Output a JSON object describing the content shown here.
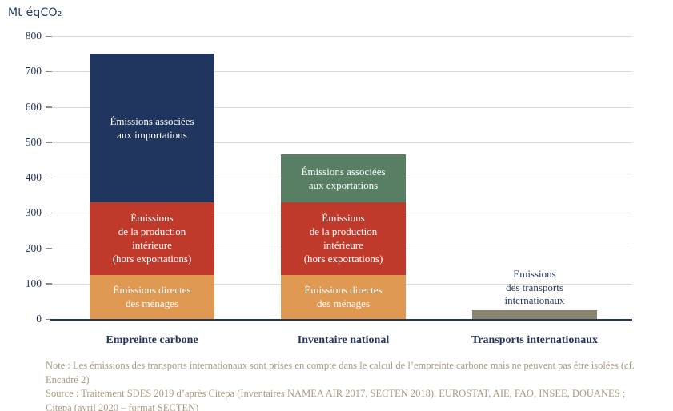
{
  "chart_data": {
    "type": "bar",
    "stacked": true,
    "unit_label": "Mt éqCO₂",
    "ylim": [
      0,
      800
    ],
    "yticks": [
      0,
      100,
      200,
      300,
      400,
      500,
      600,
      700,
      800
    ],
    "grid": true,
    "legend_position": "none",
    "categories": [
      "Empreinte carbone",
      "Inventaire national",
      "Transports internationaux"
    ],
    "series": [
      {
        "name": "Émissions directes des ménages",
        "values": [
          125,
          125,
          0
        ]
      },
      {
        "name": "Émissions de la production intérieure (hors exportations)",
        "values": [
          205,
          205,
          0
        ]
      },
      {
        "name": "Émissions associées aux importations",
        "values": [
          420,
          0,
          0
        ]
      },
      {
        "name": "Émissions associées aux exportations",
        "values": [
          0,
          135,
          0
        ]
      },
      {
        "name": "Emissions des transports internationaux",
        "values": [
          0,
          0,
          25
        ]
      }
    ],
    "colors": {
      "orange": "#e09952",
      "red": "#c03a2c",
      "blue": "#21365f",
      "green": "#587f63",
      "olive": "#8a846f"
    },
    "bars": [
      {
        "category": "Empreinte carbone",
        "segments": [
          {
            "value": 125,
            "color": "orange",
            "label_lines": [
              "Émissions directes",
              "des ménages"
            ],
            "label_position": "inside"
          },
          {
            "value": 205,
            "color": "red",
            "label_lines": [
              "Émissions",
              "de la production",
              "intérieure",
              "(hors exportations)"
            ],
            "label_position": "inside"
          },
          {
            "value": 420,
            "color": "blue",
            "label_lines": [
              "Émissions associées",
              "aux importations"
            ],
            "label_position": "inside"
          }
        ]
      },
      {
        "category": "Inventaire national",
        "segments": [
          {
            "value": 125,
            "color": "orange",
            "label_lines": [
              "Émissions directes",
              "des ménages"
            ],
            "label_position": "inside"
          },
          {
            "value": 205,
            "color": "red",
            "label_lines": [
              "Émissions",
              "de la production",
              "intérieure",
              "(hors exportations)"
            ],
            "label_position": "inside"
          },
          {
            "value": 135,
            "color": "green",
            "label_lines": [
              "Émissions associées",
              "aux exportations"
            ],
            "label_position": "inside"
          }
        ]
      },
      {
        "category": "Transports internationaux",
        "segments": [
          {
            "value": 25,
            "color": "olive",
            "label_lines": [
              "Emissions",
              "des transports",
              "internationaux"
            ],
            "label_position": "above"
          }
        ]
      }
    ],
    "axis_color": "#25365e",
    "gridline_color": "#ddd9ce"
  },
  "notes": {
    "line1": "Note : Les émissions des transports internationaux sont prises en compte dans le calcul de l’empreinte carbone mais ne peuvent pas être isolées (cf. Encadré 2)",
    "line2": "Source : Traitement SDES 2019 d’après Citepa (Inventaires NAMEA AIR 2017, SECTEN 2018), EUROSTAT, AIE, FAO, INSEE, DOUANES ;",
    "line3": "Citepa (avril 2020 – format SECTEN)"
  }
}
